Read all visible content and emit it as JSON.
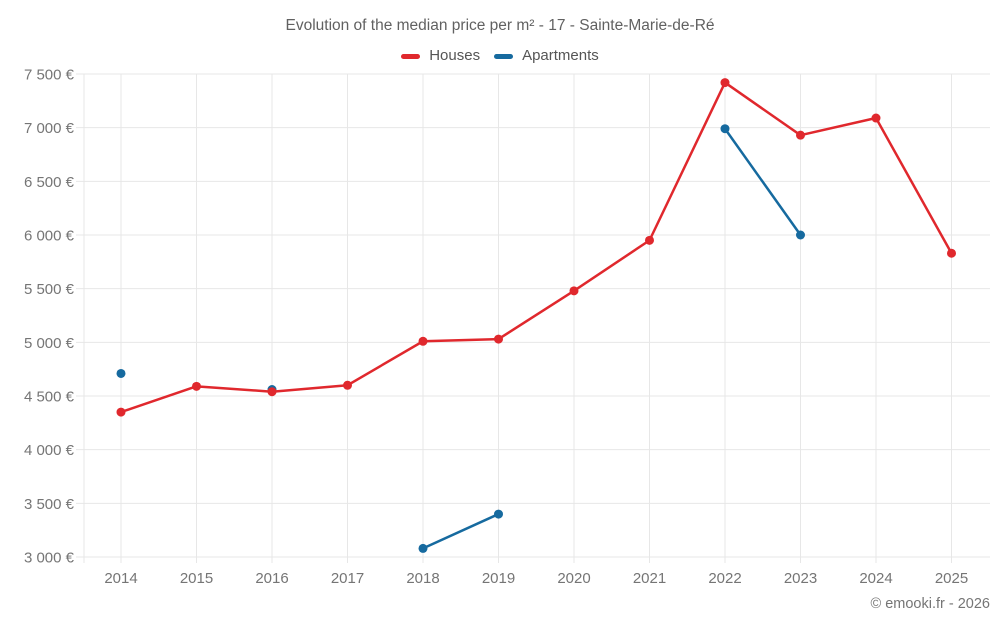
{
  "page": {
    "title": "Evolution of the median price per m² - 17 - Sainte-Marie-de-Ré",
    "footer": "© emooki.fr - 2026"
  },
  "chart_data": {
    "type": "line",
    "title": "Evolution of the median price per m² - 17 - Sainte-Marie-de-Ré",
    "categories": [
      "2014",
      "2015",
      "2016",
      "2017",
      "2018",
      "2019",
      "2020",
      "2021",
      "2022",
      "2023",
      "2024",
      "2025"
    ],
    "series": [
      {
        "name": "Houses",
        "color": "#e0282d",
        "values": [
          4350,
          4590,
          4540,
          4600,
          5010,
          5030,
          5480,
          5950,
          7420,
          6930,
          7090,
          5830
        ]
      },
      {
        "name": "Apartments",
        "color": "#166a9f",
        "values": [
          4710,
          null,
          4560,
          null,
          3080,
          3400,
          null,
          null,
          6990,
          6000,
          null,
          null
        ]
      }
    ],
    "ylim": [
      3000,
      7500
    ],
    "yticks": [
      3000,
      3500,
      4000,
      4500,
      5000,
      5500,
      6000,
      6500,
      7000,
      7500
    ],
    "ytick_labels": [
      "3 000 €",
      "3 500 €",
      "4 000 €",
      "4 500 €",
      "5 000 €",
      "5 500 €",
      "6 000 €",
      "6 500 €",
      "7 000 €",
      "7 500 €"
    ],
    "grid": true,
    "legend_position": "top",
    "axis_label_color": "#757575",
    "grid_color": "#e7e7e7"
  }
}
